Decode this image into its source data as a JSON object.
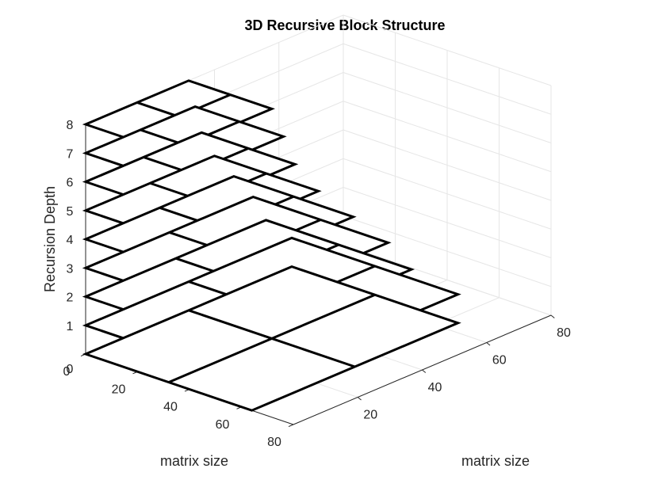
{
  "chart_data": {
    "type": "3d-layered-grid",
    "title": "3D Recursive Block Structure",
    "xlabel": "matrix size",
    "ylabel": "matrix size",
    "zlabel": "Recursion Depth",
    "xlim": [
      0,
      80
    ],
    "ylim": [
      0,
      80
    ],
    "zlim": [
      0,
      8
    ],
    "x_ticks": [
      "0",
      "20",
      "40",
      "60",
      "80"
    ],
    "y_ticks": [
      "20",
      "40",
      "60",
      "80"
    ],
    "z_ticks": [
      "0",
      "1",
      "2",
      "3",
      "4",
      "5",
      "6",
      "7",
      "8"
    ],
    "grid": true,
    "layers": [
      {
        "depth": 0,
        "size": 64,
        "splits": [
          32
        ]
      },
      {
        "depth": 1,
        "size": 64,
        "splits": [
          32
        ]
      },
      {
        "depth": 2,
        "size": 56,
        "splits": [
          28
        ]
      },
      {
        "depth": 3,
        "size": 52,
        "splits": [
          26
        ]
      },
      {
        "depth": 4,
        "size": 46,
        "splits": [
          23
        ]
      },
      {
        "depth": 5,
        "size": 40,
        "splits": [
          20
        ]
      },
      {
        "depth": 6,
        "size": 36,
        "splits": [
          18
        ]
      },
      {
        "depth": 7,
        "size": 34,
        "splits": [
          17
        ]
      },
      {
        "depth": 8,
        "size": 32,
        "splits": [
          16
        ]
      }
    ]
  }
}
